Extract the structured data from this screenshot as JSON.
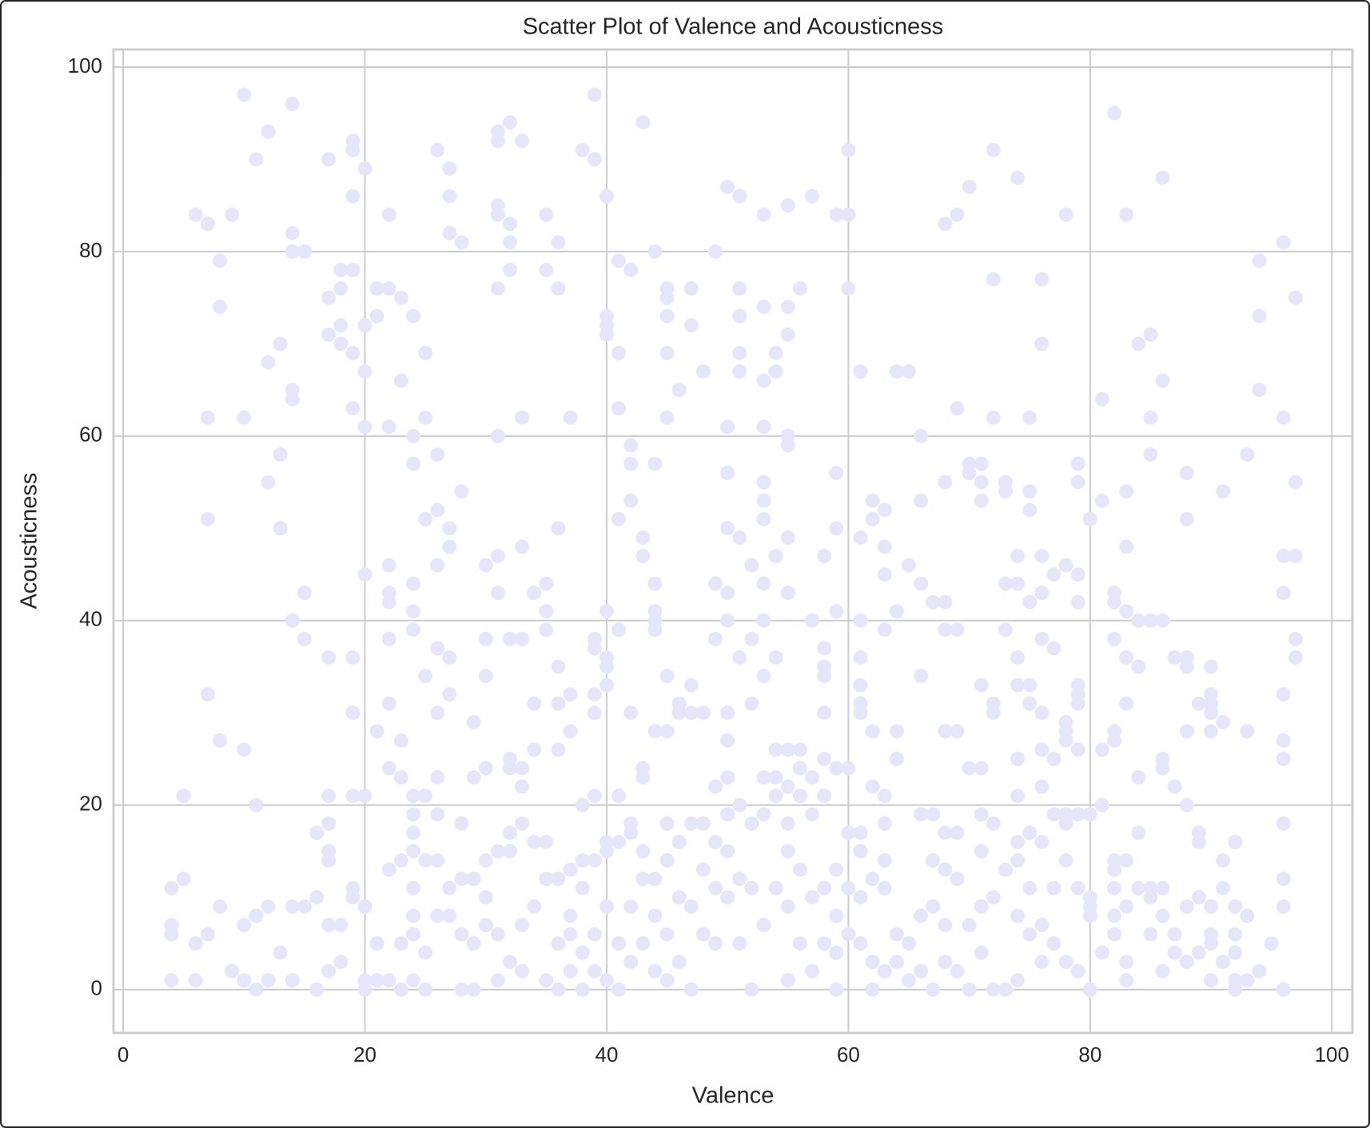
{
  "chart_data": {
    "type": "scatter",
    "title": "Scatter Plot of Valence and Acousticness",
    "xlabel": "Valence",
    "ylabel": "Acousticness",
    "color": "#e6e6fa",
    "grid": true,
    "xlim": [
      -0.8,
      101.7
    ],
    "ylim": [
      -4.7,
      101.9
    ],
    "xticks": [
      0,
      20,
      40,
      60,
      80,
      100
    ],
    "yticks": [
      0,
      20,
      40,
      60,
      80,
      100
    ],
    "x": [
      4,
      4,
      4,
      4,
      5,
      5,
      6,
      6,
      6,
      7,
      7,
      7,
      7,
      7,
      8,
      8,
      8,
      8,
      9,
      9,
      10,
      10,
      10,
      10,
      10,
      11,
      11,
      11,
      11,
      12,
      12,
      12,
      12,
      12,
      13,
      13,
      13,
      13,
      14,
      14,
      14,
      14,
      14,
      14,
      14,
      14,
      15,
      15,
      15,
      15,
      16,
      16,
      16,
      17,
      17,
      17,
      17,
      17,
      17,
      17,
      17,
      17,
      17,
      18,
      18,
      18,
      18,
      18,
      18,
      19,
      19,
      19,
      19,
      19,
      19,
      19,
      19,
      19,
      19,
      19,
      20,
      20,
      20,
      20,
      20,
      20,
      20,
      20,
      20,
      21,
      21,
      21,
      21,
      21,
      22,
      22,
      22,
      22,
      22,
      22,
      22,
      22,
      22,
      22,
      22,
      23,
      23,
      23,
      23,
      23,
      23,
      23,
      24,
      24,
      24,
      24,
      24,
      24,
      24,
      24,
      24,
      24,
      24,
      24,
      24,
      24,
      25,
      25,
      25,
      25,
      25,
      25,
      25,
      25,
      26,
      26,
      26,
      26,
      26,
      26,
      26,
      26,
      26,
      26,
      27,
      27,
      27,
      27,
      27,
      27,
      27,
      27,
      27,
      28,
      28,
      28,
      28,
      28,
      28,
      29,
      29,
      29,
      29,
      29,
      30,
      30,
      30,
      30,
      30,
      30,
      30,
      31,
      31,
      31,
      31,
      31,
      31,
      31,
      31,
      31,
      31,
      31,
      32,
      32,
      32,
      32,
      32,
      32,
      32,
      32,
      32,
      32,
      33,
      33,
      33,
      33,
      33,
      33,
      33,
      33,
      33,
      34,
      34,
      34,
      34,
      34,
      35,
      35,
      35,
      35,
      35,
      35,
      35,
      35,
      36,
      36,
      36,
      36,
      36,
      36,
      36,
      36,
      36,
      37,
      37,
      37,
      37,
      37,
      37,
      37,
      38,
      38,
      38,
      38,
      38,
      38,
      39,
      39,
      39,
      39,
      39,
      39,
      39,
      39,
      39,
      39,
      40,
      40,
      40,
      40,
      40,
      40,
      40,
      40,
      40,
      40,
      40,
      40,
      41,
      41,
      41,
      41,
      41,
      41,
      41,
      41,
      41,
      42,
      42,
      42,
      42,
      42,
      42,
      42,
      42,
      42,
      43,
      43,
      43,
      43,
      43,
      43,
      43,
      43,
      44,
      44,
      44,
      44,
      44,
      44,
      44,
      44,
      44,
      44,
      45,
      45,
      45,
      45,
      45,
      45,
      45,
      45,
      45,
      45,
      45,
      46,
      46,
      46,
      46,
      46,
      46,
      47,
      47,
      47,
      47,
      47,
      47,
      47,
      48,
      48,
      48,
      48,
      48,
      49,
      49,
      49,
      49,
      49,
      49,
      49,
      50,
      50,
      50,
      50,
      50,
      50,
      50,
      50,
      50,
      50,
      50,
      50,
      51,
      51,
      51,
      51,
      51,
      51,
      51,
      51,
      51,
      51,
      52,
      52,
      52,
      52,
      52,
      52,
      53,
      53,
      53,
      53,
      53,
      53,
      53,
      53,
      53,
      53,
      53,
      53,
      53,
      54,
      54,
      54,
      54,
      54,
      54,
      54,
      54,
      55,
      55,
      55,
      55,
      55,
      55,
      55,
      55,
      55,
      55,
      55,
      55,
      55,
      56,
      56,
      56,
      56,
      56,
      56,
      57,
      57,
      57,
      57,
      57,
      57,
      58,
      58,
      58,
      58,
      58,
      58,
      58,
      58,
      58,
      59,
      59,
      59,
      59,
      59,
      59,
      59,
      59,
      59,
      60,
      60,
      60,
      60,
      60,
      60,
      60,
      61,
      61,
      61,
      61,
      61,
      61,
      61,
      61,
      61,
      61,
      61,
      62,
      62,
      62,
      62,
      62,
      62,
      62,
      63,
      63,
      63,
      63,
      63,
      63,
      63,
      63,
      63,
      64,
      64,
      64,
      64,
      64,
      64,
      65,
      65,
      65,
      65,
      66,
      66,
      66,
      66,
      66,
      66,
      66,
      67,
      67,
      67,
      67,
      67,
      68,
      68,
      68,
      68,
      68,
      68,
      68,
      68,
      68,
      69,
      69,
      69,
      69,
      69,
      69,
      69,
      70,
      70,
      70,
      70,
      70,
      70,
      71,
      71,
      71,
      71,
      71,
      71,
      71,
      71,
      71,
      72,
      72,
      72,
      72,
      72,
      72,
      72,
      72,
      73,
      73,
      73,
      73,
      73,
      73,
      74,
      74,
      74,
      74,
      74,
      74,
      74,
      74,
      74,
      74,
      74,
      75,
      75,
      75,
      75,
      75,
      75,
      75,
      75,
      75,
      76,
      76,
      76,
      76,
      76,
      76,
      76,
      76,
      76,
      76,
      76,
      77,
      77,
      77,
      77,
      77,
      77,
      78,
      78,
      78,
      78,
      78,
      78,
      78,
      78,
      78,
      79,
      79,
      79,
      79,
      79,
      79,
      79,
      79,
      79,
      79,
      79,
      80,
      80,
      80,
      80,
      80,
      80,
      81,
      81,
      81,
      81,
      81,
      82,
      82,
      82,
      82,
      82,
      82,
      82,
      82,
      82,
      82,
      82,
      83,
      83,
      83,
      83,
      83,
      83,
      83,
      83,
      83,
      83,
      84,
      84,
      84,
      84,
      84,
      84,
      85,
      85,
      85,
      85,
      85,
      85,
      85,
      86,
      86,
      86,
      86,
      86,
      86,
      86,
      86,
      87,
      87,
      87,
      87,
      88,
      88,
      88,
      88,
      88,
      88,
      88,
      88,
      89,
      89,
      89,
      89,
      89,
      90,
      90,
      90,
      90,
      90,
      90,
      90,
      90,
      90,
      91,
      91,
      91,
      91,
      91,
      92,
      92,
      92,
      92,
      92,
      92,
      93,
      93,
      93,
      93,
      94,
      94,
      94,
      94,
      95,
      96,
      96,
      96,
      96,
      96,
      96,
      96,
      96,
      96,
      96,
      96,
      97,
      97,
      97,
      97,
      97
    ],
    "values": [
      11,
      7,
      6,
      1,
      21,
      12,
      84,
      5,
      1,
      83,
      62,
      51,
      32,
      6,
      79,
      74,
      27,
      9,
      84,
      2,
      97,
      62,
      26,
      7,
      1,
      90,
      20,
      8,
      0,
      93,
      68,
      55,
      9,
      1,
      70,
      58,
      50,
      4,
      96,
      82,
      80,
      65,
      64,
      40,
      9,
      1,
      80,
      43,
      38,
      9,
      17,
      10,
      0,
      90,
      75,
      71,
      36,
      21,
      18,
      15,
      14,
      7,
      2,
      78,
      76,
      72,
      70,
      7,
      3,
      92,
      91,
      86,
      78,
      69,
      63,
      36,
      30,
      21,
      11,
      10,
      89,
      72,
      67,
      61,
      45,
      21,
      9,
      1,
      0,
      76,
      73,
      28,
      5,
      1,
      84,
      76,
      61,
      46,
      43,
      42,
      38,
      31,
      24,
      13,
      1,
      75,
      66,
      27,
      23,
      14,
      5,
      0,
      73,
      60,
      57,
      44,
      41,
      39,
      21,
      19,
      17,
      15,
      11,
      8,
      6,
      1,
      69,
      62,
      51,
      34,
      21,
      14,
      4,
      0,
      91,
      58,
      52,
      46,
      37,
      30,
      23,
      19,
      14,
      8,
      89,
      86,
      82,
      50,
      48,
      36,
      32,
      11,
      8,
      81,
      54,
      18,
      12,
      6,
      0,
      29,
      23,
      12,
      5,
      0,
      46,
      38,
      34,
      24,
      14,
      10,
      7,
      93,
      92,
      85,
      84,
      76,
      60,
      47,
      43,
      15,
      6,
      1,
      94,
      83,
      81,
      78,
      38,
      25,
      24,
      17,
      15,
      3,
      92,
      62,
      48,
      38,
      24,
      22,
      18,
      7,
      2,
      43,
      31,
      26,
      16,
      9,
      84,
      78,
      44,
      41,
      39,
      16,
      12,
      1,
      81,
      76,
      50,
      35,
      31,
      26,
      12,
      5,
      0,
      62,
      32,
      28,
      13,
      8,
      6,
      2,
      91,
      20,
      14,
      11,
      4,
      0,
      97,
      90,
      38,
      37,
      32,
      30,
      21,
      14,
      6,
      2,
      86,
      73,
      72,
      71,
      41,
      36,
      35,
      33,
      16,
      15,
      9,
      1,
      79,
      69,
      63,
      51,
      39,
      21,
      16,
      5,
      0,
      78,
      59,
      57,
      53,
      30,
      18,
      17,
      9,
      3,
      94,
      49,
      47,
      24,
      23,
      15,
      12,
      5,
      80,
      57,
      44,
      41,
      40,
      39,
      28,
      12,
      8,
      2,
      76,
      75,
      73,
      69,
      62,
      34,
      28,
      18,
      14,
      6,
      1,
      65,
      31,
      30,
      16,
      10,
      3,
      76,
      72,
      33,
      30,
      18,
      9,
      0,
      67,
      30,
      18,
      13,
      6,
      80,
      44,
      38,
      22,
      16,
      11,
      5,
      87,
      61,
      56,
      50,
      43,
      40,
      30,
      27,
      23,
      19,
      15,
      10,
      86,
      76,
      73,
      69,
      67,
      49,
      36,
      20,
      12,
      5,
      46,
      38,
      31,
      18,
      11,
      0,
      84,
      74,
      66,
      61,
      55,
      53,
      51,
      44,
      40,
      34,
      23,
      19,
      7,
      69,
      67,
      47,
      36,
      26,
      23,
      21,
      11,
      85,
      74,
      71,
      60,
      59,
      49,
      43,
      26,
      22,
      18,
      15,
      9,
      1,
      76,
      26,
      24,
      21,
      13,
      5,
      86,
      40,
      23,
      19,
      10,
      2,
      47,
      37,
      35,
      34,
      30,
      25,
      21,
      11,
      5,
      84,
      56,
      50,
      41,
      24,
      13,
      8,
      4,
      0,
      91,
      84,
      76,
      24,
      17,
      11,
      6,
      67,
      49,
      40,
      36,
      33,
      31,
      30,
      17,
      15,
      10,
      5,
      53,
      51,
      28,
      22,
      12,
      3,
      0,
      52,
      48,
      45,
      39,
      21,
      18,
      14,
      11,
      2,
      67,
      41,
      28,
      25,
      6,
      3,
      67,
      46,
      5,
      1,
      60,
      53,
      44,
      34,
      19,
      8,
      2,
      42,
      19,
      14,
      9,
      0,
      83,
      55,
      42,
      39,
      28,
      17,
      13,
      7,
      3,
      84,
      63,
      39,
      28,
      17,
      12,
      2,
      87,
      57,
      56,
      24,
      7,
      0,
      57,
      55,
      53,
      33,
      24,
      19,
      15,
      9,
      4,
      91,
      77,
      62,
      31,
      30,
      18,
      10,
      0,
      55,
      54,
      44,
      39,
      13,
      0,
      88,
      47,
      44,
      36,
      33,
      25,
      21,
      16,
      14,
      8,
      1,
      62,
      54,
      52,
      42,
      33,
      31,
      17,
      11,
      6,
      77,
      70,
      47,
      43,
      38,
      30,
      26,
      22,
      16,
      7,
      3,
      45,
      37,
      25,
      19,
      11,
      5,
      84,
      46,
      29,
      28,
      27,
      19,
      18,
      14,
      3,
      57,
      55,
      45,
      42,
      33,
      32,
      31,
      26,
      19,
      11,
      2,
      51,
      19,
      10,
      9,
      8,
      0,
      64,
      53,
      26,
      20,
      4,
      95,
      43,
      42,
      38,
      28,
      27,
      14,
      13,
      11,
      8,
      6,
      84,
      54,
      48,
      41,
      36,
      31,
      14,
      9,
      3,
      1,
      70,
      40,
      35,
      23,
      17,
      11,
      71,
      62,
      58,
      40,
      11,
      10,
      6,
      88,
      66,
      40,
      25,
      24,
      11,
      8,
      2,
      36,
      22,
      6,
      4,
      56,
      51,
      36,
      35,
      28,
      20,
      9,
      3,
      31,
      17,
      16,
      10,
      4,
      35,
      32,
      31,
      30,
      28,
      9,
      6,
      5,
      1,
      54,
      29,
      14,
      11,
      3,
      16,
      9,
      6,
      4,
      1,
      0,
      58,
      28,
      8,
      1,
      79,
      73,
      65,
      2,
      5,
      81,
      62,
      47,
      43,
      32,
      27,
      25,
      18,
      12,
      9,
      0,
      75,
      55,
      47,
      38,
      36
    ]
  }
}
